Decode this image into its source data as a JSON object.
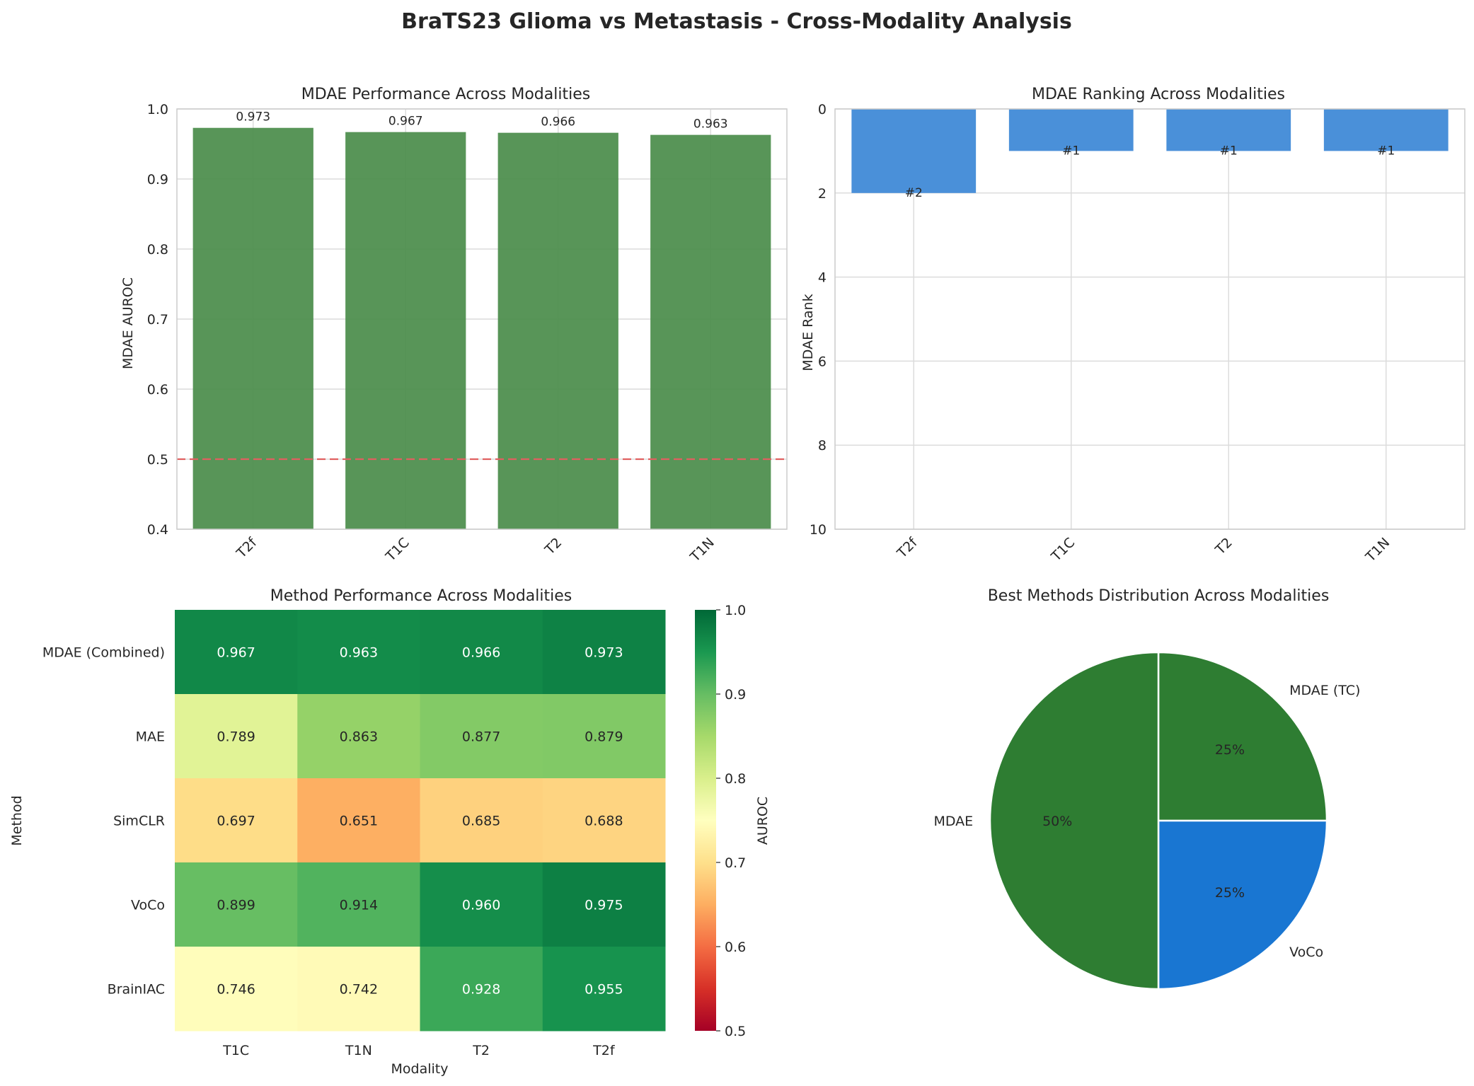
{
  "suptitle": "BraTS23 Glioma vs Metastasis - Cross-Modality Analysis",
  "chart_data": [
    {
      "type": "bar",
      "title": "MDAE Performance Across Modalities",
      "ylabel": "MDAE AUROC",
      "categories": [
        "T2f",
        "T1C",
        "T2",
        "T1N"
      ],
      "values": [
        0.973,
        0.967,
        0.966,
        0.963
      ],
      "data_labels": [
        "0.973",
        "0.967",
        "0.966",
        "0.963"
      ],
      "ylim": [
        0.4,
        1.0
      ],
      "yticks": [
        "0.4",
        "0.5",
        "0.6",
        "0.7",
        "0.8",
        "0.9",
        "1.0"
      ],
      "reference_line": 0.5,
      "bar_color": "#4a8c4a",
      "reference_color": "#e06060",
      "grid": true
    },
    {
      "type": "bar",
      "title": "MDAE Ranking Across Modalities",
      "ylabel": "MDAE Rank",
      "categories": [
        "T2f",
        "T1C",
        "T2",
        "T1N"
      ],
      "values": [
        2,
        1,
        1,
        1
      ],
      "data_labels": [
        "#2",
        "#1",
        "#1",
        "#1"
      ],
      "ylim": [
        0,
        10
      ],
      "y_inverted": true,
      "yticks": [
        "0",
        "2",
        "4",
        "6",
        "8",
        "10"
      ],
      "bar_color": "#4a90d9",
      "grid": true
    },
    {
      "type": "heatmap",
      "title": "Method Performance Across Modalities",
      "xlabel": "Modality",
      "ylabel": "Method",
      "x": [
        "T1C",
        "T1N",
        "T2",
        "T2f"
      ],
      "y": [
        "MDAE (Combined)",
        "MAE",
        "SimCLR",
        "VoCo",
        "BrainIAC"
      ],
      "values": [
        [
          0.967,
          0.963,
          0.966,
          0.973
        ],
        [
          0.789,
          0.863,
          0.877,
          0.879
        ],
        [
          0.697,
          0.651,
          0.685,
          0.688
        ],
        [
          0.899,
          0.914,
          0.96,
          0.975
        ],
        [
          0.746,
          0.742,
          0.928,
          0.955
        ]
      ],
      "cell_labels": [
        [
          "0.967",
          "0.963",
          "0.966",
          "0.973"
        ],
        [
          "0.789",
          "0.863",
          "0.877",
          "0.879"
        ],
        [
          "0.697",
          "0.651",
          "0.685",
          "0.688"
        ],
        [
          "0.899",
          "0.914",
          "0.960",
          "0.975"
        ],
        [
          "0.746",
          "0.742",
          "0.928",
          "0.955"
        ]
      ],
      "colorbar_label": "AUROC",
      "colorbar_range": [
        0.5,
        1.0
      ],
      "colorbar_ticks": [
        "0.5",
        "0.6",
        "0.7",
        "0.8",
        "0.9",
        "1.0"
      ],
      "colormap": "RdYlGn"
    },
    {
      "type": "pie",
      "title": "Best Methods Distribution Across Modalities",
      "labels": [
        "MDAE (TC)",
        "VoCo",
        "MDAE"
      ],
      "values": [
        25,
        25,
        50
      ],
      "pct_labels": [
        "25%",
        "25%",
        "50%"
      ],
      "colors": [
        "#2e7d32",
        "#1976d2",
        "#2e7d32"
      ]
    }
  ]
}
